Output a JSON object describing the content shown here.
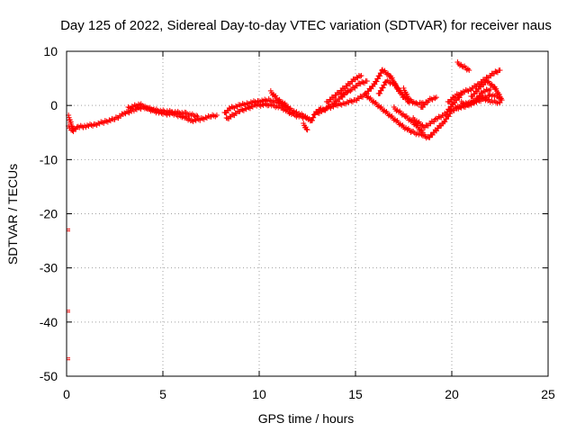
{
  "chart_data": {
    "type": "scatter",
    "title": "Day 125 of 2022, Sidereal Day-to-day VTEC variation (SDTVAR) for receiver naus",
    "xlabel": "GPS time / hours",
    "ylabel": "SDTVAR / TECUs",
    "xlim": [
      0,
      25
    ],
    "ylim": [
      -50,
      10
    ],
    "xticks": [
      0,
      5,
      10,
      15,
      20,
      25
    ],
    "yticks": [
      -50,
      -40,
      -30,
      -20,
      -10,
      0,
      10
    ],
    "grid": true,
    "marker_color": "#ff0000",
    "series": [
      {
        "name": "SDTVAR",
        "segments": [
          [
            [
              0.1,
              -4.0
            ],
            [
              0.3,
              -4.5
            ],
            [
              0.6,
              -4.0
            ],
            [
              1.0,
              -3.8
            ],
            [
              1.5,
              -3.5
            ],
            [
              2.0,
              -3.0
            ],
            [
              2.5,
              -2.5
            ],
            [
              3.0,
              -1.5
            ],
            [
              3.5,
              -0.8
            ],
            [
              4.0,
              -0.3
            ],
            [
              4.5,
              -1.0
            ],
            [
              5.0,
              -1.5
            ],
            [
              5.5,
              -1.6
            ],
            [
              6.0,
              -2.0
            ],
            [
              6.5,
              -2.8
            ],
            [
              7.0,
              -2.5
            ],
            [
              7.5,
              -2.0
            ],
            [
              7.8,
              -1.8
            ]
          ],
          [
            [
              0.1,
              -2.0
            ],
            [
              0.2,
              -3.0
            ],
            [
              0.35,
              -4.8
            ]
          ],
          [
            [
              3.2,
              -0.5
            ],
            [
              3.8,
              0.2
            ],
            [
              4.2,
              -0.5
            ],
            [
              4.8,
              -1.0
            ],
            [
              5.5,
              -1.2
            ],
            [
              6.2,
              -1.5
            ],
            [
              6.8,
              -2.0
            ]
          ],
          [
            [
              8.2,
              -1.5
            ],
            [
              8.5,
              -0.5
            ],
            [
              9.0,
              0.0
            ],
            [
              9.5,
              0.5
            ],
            [
              10.0,
              0.8
            ],
            [
              10.5,
              1.0
            ],
            [
              11.0,
              0.5
            ],
            [
              11.5,
              -0.5
            ],
            [
              12.0,
              -1.5
            ],
            [
              12.4,
              -2.0
            ],
            [
              12.7,
              -3.0
            ],
            [
              12.9,
              -1.5
            ],
            [
              13.2,
              -0.5
            ]
          ],
          [
            [
              8.3,
              -2.5
            ],
            [
              9.0,
              -1.0
            ],
            [
              9.8,
              0.0
            ],
            [
              10.5,
              0.2
            ],
            [
              11.2,
              -0.5
            ],
            [
              11.8,
              -1.8
            ],
            [
              12.4,
              -2.2
            ]
          ],
          [
            [
              10.6,
              2.5
            ],
            [
              11.0,
              1.0
            ],
            [
              11.5,
              -0.2
            ]
          ],
          [
            [
              12.3,
              -3.5
            ],
            [
              12.5,
              -4.5
            ]
          ],
          [
            [
              13.0,
              -1.5
            ],
            [
              13.5,
              -0.5
            ],
            [
              14.0,
              0.0
            ],
            [
              14.5,
              0.5
            ],
            [
              15.0,
              1.0
            ],
            [
              15.5,
              2.0
            ],
            [
              16.0,
              0.5
            ],
            [
              16.5,
              -1.0
            ],
            [
              17.0,
              -2.5
            ],
            [
              17.5,
              -4.0
            ],
            [
              18.0,
              -5.0
            ],
            [
              18.5,
              -5.5
            ],
            [
              18.8,
              -6.0
            ],
            [
              19.2,
              -4.5
            ],
            [
              19.6,
              -3.0
            ],
            [
              20.0,
              -1.0
            ],
            [
              20.5,
              0.0
            ],
            [
              21.0,
              0.5
            ],
            [
              21.5,
              1.0
            ],
            [
              22.0,
              2.0
            ],
            [
              22.5,
              1.5
            ]
          ],
          [
            [
              13.5,
              0.5
            ],
            [
              14.0,
              2.0
            ],
            [
              14.5,
              3.5
            ],
            [
              15.0,
              5.0
            ],
            [
              15.3,
              5.5
            ]
          ],
          [
            [
              14.3,
              2.0
            ],
            [
              14.8,
              3.0
            ],
            [
              15.2,
              4.0
            ],
            [
              15.6,
              4.5
            ]
          ],
          [
            [
              13.3,
              -1.0
            ],
            [
              13.9,
              0.5
            ],
            [
              14.6,
              2.5
            ]
          ],
          [
            [
              15.5,
              2.0
            ],
            [
              16.0,
              4.0
            ],
            [
              16.4,
              6.5
            ],
            [
              16.8,
              5.5
            ],
            [
              17.2,
              3.0
            ],
            [
              17.5,
              1.5
            ]
          ],
          [
            [
              16.2,
              2.0
            ],
            [
              16.6,
              4.5
            ],
            [
              17.0,
              4.0
            ],
            [
              17.5,
              1.8
            ],
            [
              17.8,
              0.5
            ]
          ],
          [
            [
              17.5,
              3.0
            ],
            [
              17.8,
              1.0
            ],
            [
              18.2,
              0.2
            ],
            [
              18.5,
              0.5
            ]
          ],
          [
            [
              17.0,
              -0.5
            ],
            [
              17.6,
              -2.0
            ],
            [
              18.1,
              -3.5
            ],
            [
              18.5,
              -5.0
            ]
          ],
          [
            [
              18.0,
              -2.5
            ],
            [
              18.6,
              -4.0
            ],
            [
              19.2,
              -2.5
            ],
            [
              19.7,
              -1.5
            ],
            [
              20.1,
              0.5
            ],
            [
              20.5,
              2.0
            ]
          ],
          [
            [
              18.4,
              -0.5
            ],
            [
              18.8,
              1.0
            ],
            [
              19.2,
              1.5
            ]
          ],
          [
            [
              19.8,
              0.5
            ],
            [
              20.2,
              1.8
            ],
            [
              20.6,
              2.5
            ],
            [
              21.0,
              3.0
            ],
            [
              21.4,
              4.0
            ],
            [
              21.8,
              5.0
            ],
            [
              22.2,
              6.0
            ],
            [
              22.5,
              6.5
            ]
          ],
          [
            [
              20.3,
              7.8
            ],
            [
              20.6,
              7.2
            ],
            [
              20.9,
              6.5
            ]
          ],
          [
            [
              20.5,
              0.5
            ],
            [
              21.0,
              0.2
            ],
            [
              21.5,
              1.5
            ],
            [
              22.0,
              0.8
            ],
            [
              22.5,
              0.5
            ]
          ],
          [
            [
              21.0,
              1.5
            ],
            [
              21.5,
              3.5
            ],
            [
              21.8,
              4.5
            ],
            [
              22.2,
              3.5
            ],
            [
              22.6,
              1.0
            ]
          ],
          [
            [
              20.2,
              -0.5
            ],
            [
              20.7,
              -0.2
            ],
            [
              21.2,
              0.8
            ],
            [
              21.6,
              2.5
            ],
            [
              22.0,
              3.0
            ]
          ]
        ],
        "outliers": [
          [
            0.0,
            -23.0
          ],
          [
            0.0,
            -38.0
          ],
          [
            0.0,
            -46.8
          ]
        ]
      }
    ]
  }
}
